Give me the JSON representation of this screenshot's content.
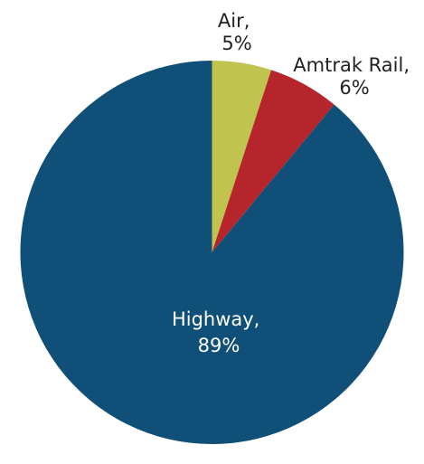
{
  "chart_data": {
    "type": "pie",
    "slices": [
      {
        "label": "Air,",
        "value": 5,
        "value_text": "5%",
        "color": "#c0c34e",
        "label_color": "#222222"
      },
      {
        "label": "Amtrak Rail,",
        "value": 6,
        "value_text": "6%",
        "color": "#b5252b",
        "label_color": "#222222"
      },
      {
        "label": "Highway,",
        "value": 89,
        "value_text": "89%",
        "color": "#0f4f78",
        "label_color": "#ffffff"
      }
    ],
    "start_angle_deg": 0,
    "direction": "clockwise"
  }
}
